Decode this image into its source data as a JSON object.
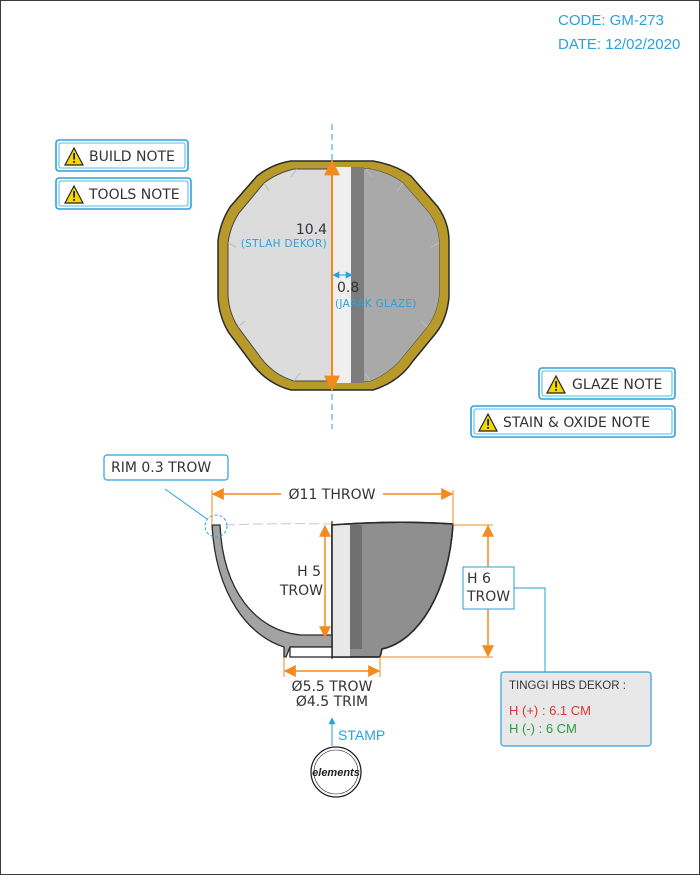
{
  "header": {
    "code": "CODE: GM-273",
    "date": "DATE: 12/02/2020"
  },
  "notes": {
    "build": "BUILD NOTE",
    "tools": "TOOLS NOTE",
    "glaze": "GLAZE NOTE",
    "stain": "STAIN & OXIDE NOTE",
    "icon": "warning-triangle-icon"
  },
  "top_view": {
    "height_value": "10.4",
    "height_caption": "(STLAH DEKOR)",
    "gap_value": "0.8",
    "gap_caption": "(JARAK GLAZE)"
  },
  "side_view": {
    "rim_label": "RIM 0.3 TROW",
    "diameter_label": "Ø11 THROW",
    "inner_h_value": "H 5",
    "inner_h_unit": "TROW",
    "outer_h_value": "H 6",
    "outer_h_unit": "TROW",
    "foot_trow": "Ø5.5 TROW",
    "foot_trim": "Ø4.5 TRIM",
    "stamp_label": "STAMP"
  },
  "decor_box": {
    "title": "TINGGI HBS DEKOR :",
    "plus": "H (+) : 6.1 CM",
    "minus": "H (-) : 6 CM"
  },
  "logo": {
    "text": "elements"
  },
  "colors": {
    "accent": "#2aa1dd",
    "dimension": "#f28a1e",
    "rim_gold": "#b89a2a",
    "plus": "#e0342c",
    "minus": "#2c9a3e",
    "warning": "#f5d800"
  }
}
